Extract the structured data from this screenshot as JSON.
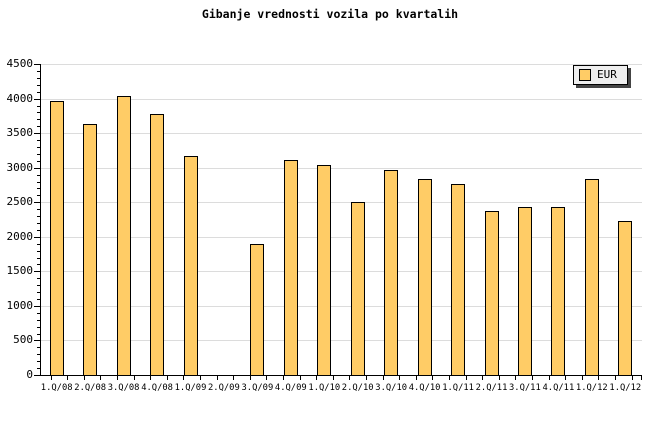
{
  "title": "Gibanje vrednosti vozila po kvartalih",
  "legend": {
    "label": "EUR"
  },
  "colors": {
    "background": "#FFFFFF",
    "bar_fill": "#FFCC66",
    "bar_border": "#000000",
    "grid": "#DCDCDC",
    "axis": "#000000",
    "text": "#000000",
    "legend_bg": "#EEEEEE",
    "legend_border": "#000000",
    "legend_shadow": "#444444"
  },
  "chart_data": {
    "type": "bar",
    "title": "Gibanje vrednosti vozila po kvartalih",
    "categories": [
      "1.Q/08",
      "2.Q/08",
      "3.Q/08",
      "4.Q/08",
      "1.Q/09",
      "2.Q/09",
      "3.Q/09",
      "4.Q/09",
      "1.Q/10",
      "2.Q/10",
      "3.Q/10",
      "4.Q/10",
      "1.Q/11",
      "2.Q/11",
      "3.Q/11",
      "4.Q/11",
      "1.Q/12",
      "1.Q/12"
    ],
    "series": [
      {
        "name": "EUR",
        "values": [
          3960,
          3630,
          4040,
          3780,
          3170,
          0,
          1900,
          3110,
          3040,
          2500,
          2960,
          2830,
          2760,
          2370,
          2430,
          2430,
          2830,
          2230
        ]
      }
    ],
    "xlabel": "",
    "ylabel": "",
    "ylim": [
      0,
      4500
    ],
    "ytick_step": 500,
    "yminor_step": 100,
    "ytick_labels": [
      "0",
      "500",
      "1000",
      "1500",
      "2000",
      "2500",
      "3000",
      "3500",
      "4000",
      "4500"
    ],
    "grid": true,
    "legend_position": "top-right"
  }
}
